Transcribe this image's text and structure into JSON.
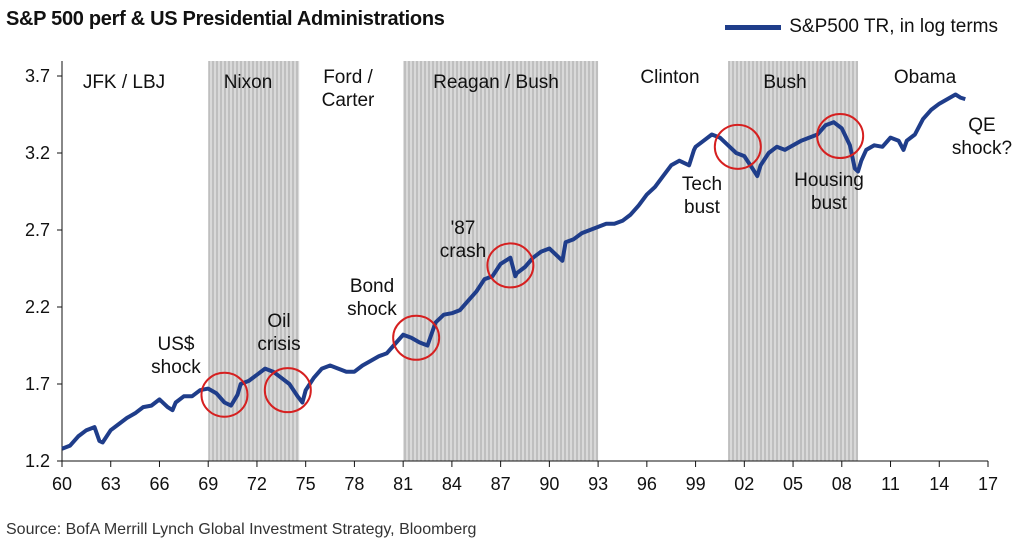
{
  "header": {
    "title": "S&P 500 perf & US Presidential Administrations",
    "legend_label": "S&P500 TR, in log terms",
    "source": "Source: BofA Merrill Lynch Global Investment Strategy, Bloomberg"
  },
  "chart_data": {
    "type": "line",
    "title": "S&P 500 perf & US Presidential Administrations",
    "xlabel": "",
    "ylabel": "",
    "xlim": [
      1960,
      2017
    ],
    "ylim": [
      1.2,
      3.8
    ],
    "x_ticks": [
      1960,
      1963,
      1966,
      1969,
      1972,
      1975,
      1978,
      1981,
      1984,
      1987,
      1990,
      1993,
      1996,
      1999,
      2002,
      2005,
      2008,
      2011,
      2014,
      2017
    ],
    "x_tick_labels": [
      "60",
      "63",
      "66",
      "69",
      "72",
      "75",
      "78",
      "81",
      "84",
      "87",
      "90",
      "93",
      "96",
      "99",
      "02",
      "05",
      "08",
      "11",
      "14",
      "17"
    ],
    "y_ticks": [
      1.2,
      1.7,
      2.2,
      2.7,
      3.2,
      3.7
    ],
    "y_tick_labels": [
      "1.2",
      "1.7",
      "2.2",
      "2.7",
      "3.2",
      "3.7"
    ],
    "legend_position": "top-right",
    "grid": false,
    "line_color": "#1f3d8a",
    "band_color": "#c8c8c8",
    "circle_color": "#d62020",
    "series": [
      {
        "name": "S&P500 TR, in log terms",
        "x": [
          1960.0,
          1960.5,
          1961.0,
          1961.5,
          1962.0,
          1962.3,
          1962.5,
          1963.0,
          1963.5,
          1964.0,
          1964.5,
          1965.0,
          1965.5,
          1966.0,
          1966.5,
          1966.8,
          1967.0,
          1967.5,
          1968.0,
          1968.5,
          1969.0,
          1969.5,
          1970.0,
          1970.4,
          1970.8,
          1971.0,
          1971.5,
          1972.0,
          1972.5,
          1973.0,
          1973.5,
          1974.0,
          1974.5,
          1974.8,
          1975.0,
          1975.5,
          1976.0,
          1976.5,
          1977.0,
          1977.5,
          1978.0,
          1978.5,
          1979.0,
          1979.5,
          1980.0,
          1980.5,
          1981.0,
          1981.5,
          1982.0,
          1982.5,
          1983.0,
          1983.5,
          1984.0,
          1984.5,
          1985.0,
          1985.5,
          1986.0,
          1986.5,
          1987.0,
          1987.6,
          1987.9,
          1988.0,
          1988.5,
          1989.0,
          1989.5,
          1990.0,
          1990.8,
          1991.0,
          1991.5,
          1992.0,
          1992.5,
          1993.0,
          1993.5,
          1994.0,
          1994.5,
          1995.0,
          1995.5,
          1996.0,
          1996.5,
          1997.0,
          1997.5,
          1998.0,
          1998.6,
          1998.9,
          1999.0,
          1999.5,
          2000.0,
          2000.5,
          2001.0,
          2001.5,
          2002.0,
          2002.5,
          2002.8,
          2003.0,
          2003.5,
          2004.0,
          2004.5,
          2005.0,
          2005.5,
          2006.0,
          2006.5,
          2007.0,
          2007.5,
          2008.0,
          2008.5,
          2008.8,
          2009.0,
          2009.2,
          2009.5,
          2010.0,
          2010.5,
          2011.0,
          2011.5,
          2011.8,
          2012.0,
          2012.5,
          2013.0,
          2013.5,
          2014.0,
          2014.5,
          2015.0,
          2015.3,
          2015.6
        ],
        "values": [
          1.28,
          1.3,
          1.36,
          1.4,
          1.42,
          1.33,
          1.32,
          1.4,
          1.44,
          1.48,
          1.51,
          1.55,
          1.56,
          1.6,
          1.55,
          1.53,
          1.58,
          1.62,
          1.62,
          1.66,
          1.67,
          1.64,
          1.58,
          1.56,
          1.63,
          1.7,
          1.72,
          1.76,
          1.8,
          1.78,
          1.74,
          1.7,
          1.62,
          1.58,
          1.66,
          1.74,
          1.8,
          1.82,
          1.8,
          1.78,
          1.78,
          1.82,
          1.85,
          1.88,
          1.9,
          1.96,
          2.02,
          2.0,
          1.97,
          1.95,
          2.1,
          2.15,
          2.16,
          2.18,
          2.24,
          2.3,
          2.38,
          2.4,
          2.48,
          2.52,
          2.4,
          2.42,
          2.46,
          2.52,
          2.56,
          2.58,
          2.5,
          2.62,
          2.64,
          2.68,
          2.7,
          2.72,
          2.74,
          2.74,
          2.76,
          2.8,
          2.86,
          2.93,
          2.98,
          3.05,
          3.12,
          3.15,
          3.12,
          3.22,
          3.24,
          3.28,
          3.32,
          3.3,
          3.25,
          3.2,
          3.18,
          3.1,
          3.05,
          3.12,
          3.2,
          3.24,
          3.22,
          3.25,
          3.28,
          3.3,
          3.32,
          3.38,
          3.4,
          3.36,
          3.25,
          3.1,
          3.08,
          3.15,
          3.22,
          3.25,
          3.24,
          3.3,
          3.28,
          3.22,
          3.28,
          3.32,
          3.42,
          3.48,
          3.52,
          3.55,
          3.58,
          3.56,
          3.55
        ]
      }
    ],
    "bands": [
      {
        "label": "JFK / LBJ",
        "start": 1960.0,
        "end": 1969.0,
        "shaded": false
      },
      {
        "label": "Nixon",
        "start": 1969.0,
        "end": 1974.6,
        "shaded": true
      },
      {
        "label": "Ford / Carter",
        "start": 1974.6,
        "end": 1981.0,
        "shaded": false
      },
      {
        "label": "Reagan / Bush",
        "start": 1981.0,
        "end": 1993.0,
        "shaded": true
      },
      {
        "label": "Clinton",
        "start": 1993.0,
        "end": 2001.0,
        "shaded": false
      },
      {
        "label": "Bush",
        "start": 2001.0,
        "end": 2009.0,
        "shaded": true
      },
      {
        "label": "Obama",
        "start": 2009.0,
        "end": 2017.0,
        "shaded": false
      }
    ],
    "annotations": [
      {
        "label": "US$ shock",
        "cx": 1970.0,
        "cy": 1.63
      },
      {
        "label": "Oil crisis",
        "cx": 1973.9,
        "cy": 1.66
      },
      {
        "label": "Bond shock",
        "cx": 1981.8,
        "cy": 2.0
      },
      {
        "label": "'87 crash",
        "cx": 1987.6,
        "cy": 2.47
      },
      {
        "label": "Tech bust",
        "cx": 2001.6,
        "cy": 3.24
      },
      {
        "label": "Housing bust",
        "cx": 2007.9,
        "cy": 3.31
      },
      {
        "label": "QE shock?",
        "cx": null,
        "cy": null
      }
    ]
  }
}
